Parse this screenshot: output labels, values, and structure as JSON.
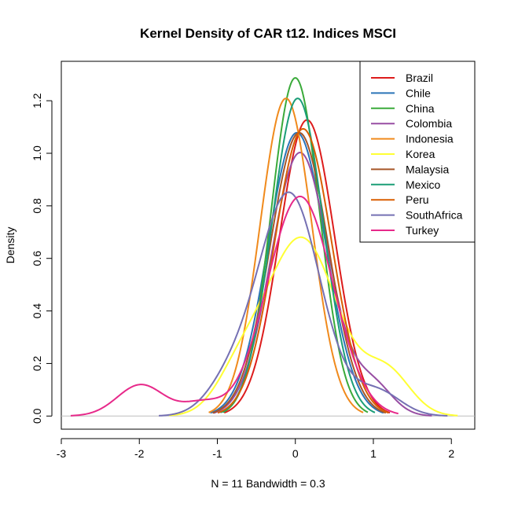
{
  "chart_data": {
    "type": "line",
    "title": "Kernel Density of CAR t12. Indices MSCI",
    "xlabel": "N = 11   Bandwidth = 0.3",
    "ylabel": "Density",
    "xlim": [
      -3,
      2.3
    ],
    "ylim": [
      -0.05,
      1.35
    ],
    "x_ticks": [
      "-3",
      "-2",
      "-1",
      "0",
      "1",
      "2"
    ],
    "y_ticks": [
      "0.0",
      "0.2",
      "0.4",
      "0.6",
      "0.8",
      "1.0",
      "1.2"
    ],
    "legend_position": "top-right",
    "baseline": 0,
    "series": [
      {
        "name": "Brazil",
        "color": "#dd1c1c",
        "components": [
          {
            "w": 1.0,
            "mu": 0.15,
            "sd": 0.354
          }
        ]
      },
      {
        "name": "Chile",
        "color": "#2b74b8",
        "components": [
          {
            "w": 1.0,
            "mu": 0.02,
            "sd": 0.37
          }
        ]
      },
      {
        "name": "China",
        "color": "#3aaa3a",
        "components": [
          {
            "w": 1.0,
            "mu": 0.0,
            "sd": 0.31
          }
        ]
      },
      {
        "name": "Colombia",
        "color": "#984ea3",
        "components": [
          {
            "w": 0.93,
            "mu": 0.06,
            "sd": 0.37
          },
          {
            "w": 0.07,
            "mu": 1.0,
            "sd": 0.25
          }
        ]
      },
      {
        "name": "Indonesia",
        "color": "#f08a1c",
        "components": [
          {
            "w": 1.0,
            "mu": -0.12,
            "sd": 0.33
          }
        ]
      },
      {
        "name": "Korea",
        "color": "#ffff33",
        "components": [
          {
            "w": 0.78,
            "mu": 0.08,
            "sd": 0.46
          },
          {
            "w": 0.1,
            "mu": -0.72,
            "sd": 0.3
          },
          {
            "w": 0.12,
            "mu": 1.18,
            "sd": 0.3
          }
        ]
      },
      {
        "name": "Malaysia",
        "color": "#a65628",
        "components": [
          {
            "w": 1.0,
            "mu": 0.05,
            "sd": 0.37
          }
        ]
      },
      {
        "name": "Mexico",
        "color": "#1b9e77",
        "components": [
          {
            "w": 1.0,
            "mu": 0.03,
            "sd": 0.33
          }
        ]
      },
      {
        "name": "Peru",
        "color": "#d95f02",
        "components": [
          {
            "w": 1.0,
            "mu": 0.1,
            "sd": 0.365
          }
        ]
      },
      {
        "name": "SouthAfrica",
        "color": "#7570b3",
        "components": [
          {
            "w": 0.85,
            "mu": -0.08,
            "sd": 0.4
          },
          {
            "w": 0.08,
            "mu": -0.85,
            "sd": 0.3
          },
          {
            "w": 0.07,
            "mu": 1.05,
            "sd": 0.3
          }
        ]
      },
      {
        "name": "Turkey",
        "color": "#e7298a",
        "components": [
          {
            "w": 0.88,
            "mu": 0.06,
            "sd": 0.42
          },
          {
            "w": 0.09,
            "mu": -1.98,
            "sd": 0.3
          },
          {
            "w": 0.03,
            "mu": -1.2,
            "sd": 0.25
          }
        ]
      }
    ]
  }
}
